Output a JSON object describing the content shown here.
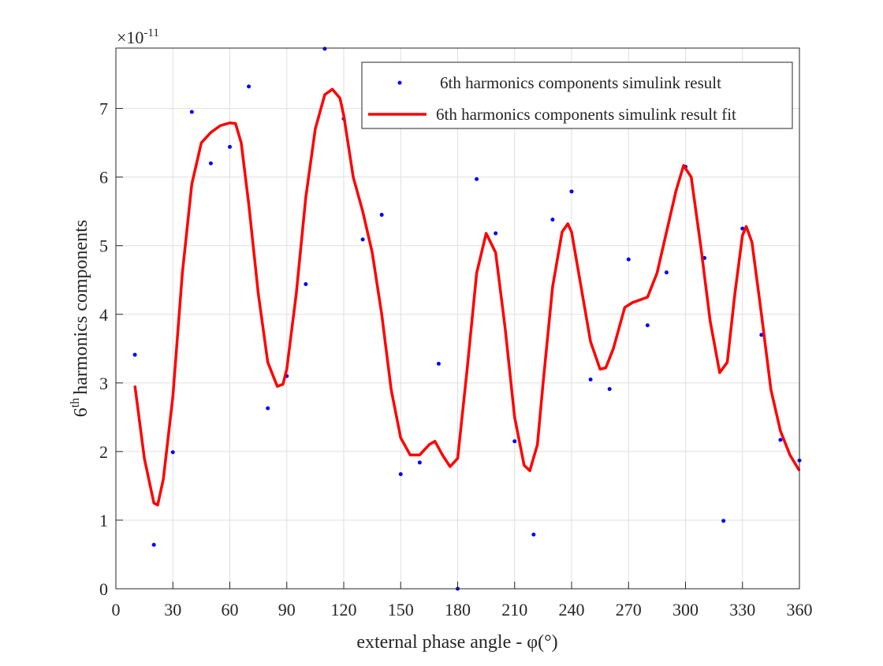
{
  "chart_data": {
    "type": "scatter",
    "x_label": "external phase angle - φ(°)",
    "y_label": {
      "number": "6",
      "suffix": "th",
      "text": "harmonics components"
    },
    "y_multiplier": {
      "base": "×10",
      "exponent": "-11"
    },
    "xlim": [
      0,
      360
    ],
    "xticks": [
      0,
      30,
      60,
      90,
      120,
      150,
      180,
      210,
      240,
      270,
      300,
      330,
      360
    ],
    "ylim": [
      0,
      7.88
    ],
    "yticks": [
      0,
      1,
      2,
      3,
      4,
      5,
      6,
      7
    ],
    "grid": true,
    "legend": "upper right",
    "series": [
      {
        "name": "6th harmonics components simulink result",
        "type": "scatter",
        "color": "#0000ff",
        "x": [
          10,
          20,
          30,
          40,
          50,
          60,
          70,
          80,
          90,
          100,
          110,
          120,
          130,
          140,
          150,
          160,
          170,
          180,
          190,
          200,
          210,
          220,
          230,
          240,
          250,
          260,
          270,
          280,
          290,
          300,
          310,
          320,
          330,
          340,
          350,
          360
        ],
        "values": [
          3.41,
          0.64,
          1.99,
          6.95,
          6.2,
          6.44,
          7.32,
          2.63,
          3.1,
          4.44,
          7.87,
          6.85,
          5.09,
          5.45,
          1.67,
          1.84,
          3.28,
          0,
          5.97,
          5.18,
          2.15,
          0.79,
          5.38,
          5.79,
          3.05,
          2.91,
          4.8,
          3.84,
          4.61,
          6.15,
          4.82,
          0.99,
          5.25,
          3.7,
          2.17,
          1.87
        ]
      },
      {
        "name": "6th harmonics components simulink result fit",
        "type": "line",
        "color": "#ff0000",
        "x": [
          10,
          15,
          20,
          22,
          25,
          30,
          35,
          40,
          45,
          50,
          55,
          60,
          63,
          66,
          70,
          75,
          80,
          85,
          88,
          90,
          95,
          100,
          105,
          110,
          114,
          118,
          120,
          125,
          130,
          135,
          140,
          145,
          150,
          155,
          160,
          165,
          168,
          172,
          176,
          180,
          185,
          190,
          195,
          200,
          205,
          210,
          215,
          218,
          222,
          225,
          230,
          235,
          238,
          240,
          245,
          250,
          255,
          258,
          262,
          265,
          268,
          272,
          275,
          280,
          285,
          290,
          295,
          299,
          303,
          308,
          313,
          318,
          322,
          326,
          330,
          332,
          335,
          340,
          345,
          350,
          355,
          360
        ],
        "values": [
          2.96,
          1.9,
          1.25,
          1.22,
          1.6,
          2.8,
          4.6,
          5.9,
          6.5,
          6.65,
          6.75,
          6.79,
          6.78,
          6.5,
          5.6,
          4.3,
          3.3,
          2.95,
          2.98,
          3.2,
          4.3,
          5.7,
          6.7,
          7.2,
          7.28,
          7.15,
          6.9,
          6.0,
          5.5,
          4.9,
          4.0,
          2.9,
          2.2,
          1.95,
          1.95,
          2.1,
          2.15,
          1.95,
          1.78,
          1.9,
          3.2,
          4.6,
          5.18,
          4.9,
          3.8,
          2.5,
          1.8,
          1.72,
          2.1,
          3.0,
          4.4,
          5.2,
          5.32,
          5.2,
          4.4,
          3.6,
          3.2,
          3.22,
          3.5,
          3.8,
          4.1,
          4.17,
          4.2,
          4.25,
          4.6,
          5.2,
          5.8,
          6.17,
          6.0,
          5.0,
          3.9,
          3.15,
          3.3,
          4.3,
          5.15,
          5.28,
          5.05,
          4.0,
          2.9,
          2.3,
          1.95,
          1.72
        ]
      }
    ]
  }
}
